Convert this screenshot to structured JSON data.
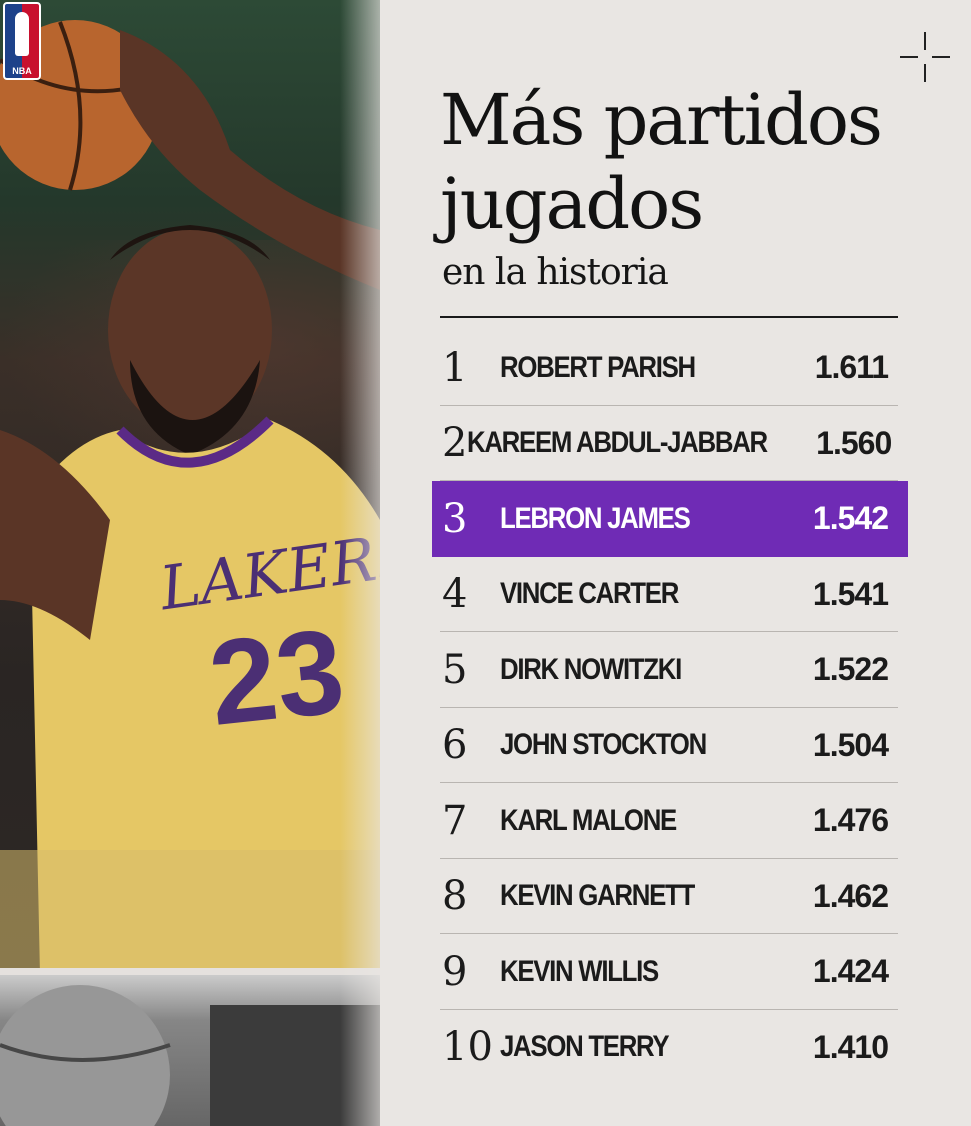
{
  "brand": {
    "logo_text": "NBA"
  },
  "title": "Más partidos jugados",
  "subtitle": "en la historia",
  "colors": {
    "highlight": "#6f2bb5",
    "text": "#1b1b1b",
    "background": "#e9e6e3"
  },
  "leaderboard": [
    {
      "rank": "1",
      "name": "ROBERT PARISH",
      "games": "1.611"
    },
    {
      "rank": "2",
      "name": "KAREEM ABDUL-JABBAR",
      "games": "1.560"
    },
    {
      "rank": "3",
      "name": "LEBRON JAMES",
      "games": "1.542",
      "highlighted": true
    },
    {
      "rank": "4",
      "name": "VINCE CARTER",
      "games": "1.541"
    },
    {
      "rank": "5",
      "name": "DIRK NOWITZKI",
      "games": "1.522"
    },
    {
      "rank": "6",
      "name": "JOHN STOCKTON",
      "games": "1.504"
    },
    {
      "rank": "7",
      "name": "KARL MALONE",
      "games": "1.476"
    },
    {
      "rank": "8",
      "name": "KEVIN GARNETT",
      "games": "1.462"
    },
    {
      "rank": "9",
      "name": "KEVIN WILLIS",
      "games": "1.424"
    },
    {
      "rank": "10",
      "name": "JASON TERRY",
      "games": "1.410"
    }
  ]
}
